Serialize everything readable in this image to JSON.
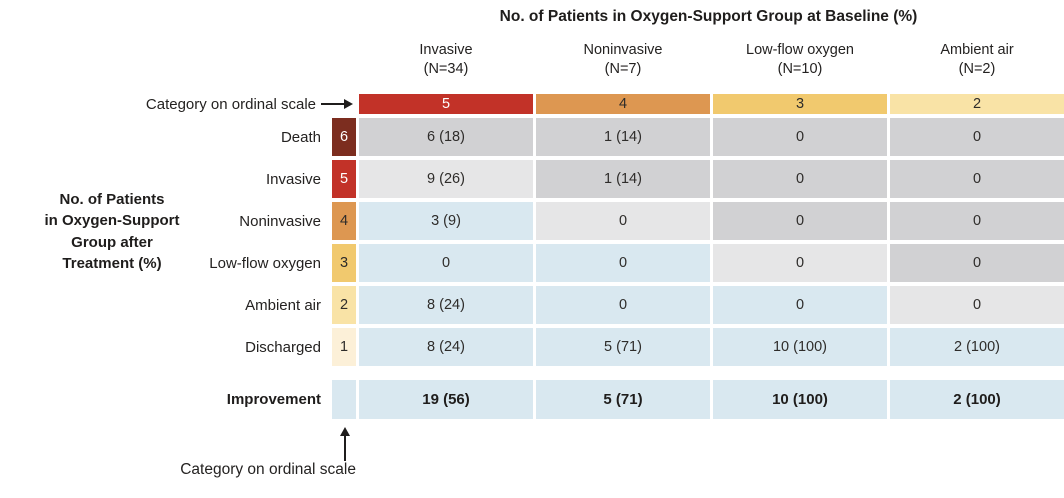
{
  "colors": {
    "ink": "#2e2c2a",
    "chiplight": "#ffffff",
    "cat6": "#7c2d1f",
    "cat5": "#c23228",
    "cat4": "#dd9751",
    "cat3": "#f1c96e",
    "cat2": "#f9e3a6",
    "cat1": "#fcf0d8",
    "gray": "#d1d1d3",
    "lightgray": "#e6e6e7",
    "blue": "#d9e8f0"
  },
  "title": "No. of Patients in Oxygen-Support Group at Baseline (%)",
  "ordinal_pointer_top": "Category on ordinal scale",
  "ordinal_pointer_bottom": "Category on ordinal scale",
  "left_label": {
    "lines": [
      "No. of Patients",
      "in Oxygen-Support",
      "Group after",
      "Treatment (%)"
    ]
  },
  "columns": [
    {
      "label": "Invasive",
      "n": "(N=34)",
      "ordinal": "5",
      "cat": "cat5"
    },
    {
      "label": "Noninvasive",
      "n": "(N=7)",
      "ordinal": "4",
      "cat": "cat4"
    },
    {
      "label": "Low-flow oxygen",
      "n": "(N=10)",
      "ordinal": "3",
      "cat": "cat3"
    },
    {
      "label": "Ambient air",
      "n": "(N=2)",
      "ordinal": "2",
      "cat": "cat2"
    }
  ],
  "rows": [
    {
      "label": "Death",
      "ordinal": "6",
      "cat": "cat6",
      "cells": [
        {
          "v": "6 (18)",
          "shade": "gray"
        },
        {
          "v": "1 (14)",
          "shade": "gray"
        },
        {
          "v": "0",
          "shade": "gray"
        },
        {
          "v": "0",
          "shade": "gray"
        }
      ]
    },
    {
      "label": "Invasive",
      "ordinal": "5",
      "cat": "cat5",
      "cells": [
        {
          "v": "9 (26)",
          "shade": "lightgray"
        },
        {
          "v": "1 (14)",
          "shade": "gray"
        },
        {
          "v": "0",
          "shade": "gray"
        },
        {
          "v": "0",
          "shade": "gray"
        }
      ]
    },
    {
      "label": "Noninvasive",
      "ordinal": "4",
      "cat": "cat4",
      "cells": [
        {
          "v": "3 (9)",
          "shade": "blue"
        },
        {
          "v": "0",
          "shade": "lightgray"
        },
        {
          "v": "0",
          "shade": "gray"
        },
        {
          "v": "0",
          "shade": "gray"
        }
      ]
    },
    {
      "label": "Low-flow oxygen",
      "ordinal": "3",
      "cat": "cat3",
      "cells": [
        {
          "v": "0",
          "shade": "blue"
        },
        {
          "v": "0",
          "shade": "blue"
        },
        {
          "v": "0",
          "shade": "lightgray"
        },
        {
          "v": "0",
          "shade": "gray"
        }
      ]
    },
    {
      "label": "Ambient air",
      "ordinal": "2",
      "cat": "cat2",
      "cells": [
        {
          "v": "8 (24)",
          "shade": "blue"
        },
        {
          "v": "0",
          "shade": "blue"
        },
        {
          "v": "0",
          "shade": "blue"
        },
        {
          "v": "0",
          "shade": "lightgray"
        }
      ]
    },
    {
      "label": "Discharged",
      "ordinal": "1",
      "cat": "cat1",
      "cells": [
        {
          "v": "8 (24)",
          "shade": "blue"
        },
        {
          "v": "5 (71)",
          "shade": "blue"
        },
        {
          "v": "10 (100)",
          "shade": "blue"
        },
        {
          "v": "2 (100)",
          "shade": "blue"
        }
      ]
    }
  ],
  "improvement": {
    "label": "Improvement",
    "chip_shade": "blue",
    "cells": [
      {
        "v": "19 (56)",
        "shade": "blue"
      },
      {
        "v": "5 (71)",
        "shade": "blue"
      },
      {
        "v": "10 (100)",
        "shade": "blue"
      },
      {
        "v": "2 (100)",
        "shade": "blue"
      }
    ]
  },
  "chart_data": {
    "type": "table",
    "title": "No. of Patients in Oxygen-Support Group at Baseline (%)",
    "row_axis_title": "No. of Patients in Oxygen-Support Group after Treatment (%)",
    "columns": [
      "Invasive (N=34)",
      "Noninvasive (N=7)",
      "Low-flow oxygen (N=10)",
      "Ambient air (N=2)"
    ],
    "column_ordinal_categories": [
      5,
      4,
      3,
      2
    ],
    "rows": [
      "Death",
      "Invasive",
      "Noninvasive",
      "Low-flow oxygen",
      "Ambient air",
      "Discharged",
      "Improvement"
    ],
    "row_ordinal_categories": [
      6,
      5,
      4,
      3,
      2,
      1,
      null
    ],
    "values": [
      [
        "6 (18)",
        "1 (14)",
        "0",
        "0"
      ],
      [
        "9 (26)",
        "1 (14)",
        "0",
        "0"
      ],
      [
        "3 (9)",
        "0",
        "0",
        "0"
      ],
      [
        "0",
        "0",
        "0",
        "0"
      ],
      [
        "8 (24)",
        "0",
        "0",
        "0"
      ],
      [
        "8 (24)",
        "5 (71)",
        "10 (100)",
        "2 (100)"
      ],
      [
        "19 (56)",
        "5 (71)",
        "10 (100)",
        "2 (100)"
      ]
    ],
    "cell_shading": [
      [
        "gray",
        "gray",
        "gray",
        "gray"
      ],
      [
        "lightgray",
        "gray",
        "gray",
        "gray"
      ],
      [
        "blue",
        "lightgray",
        "gray",
        "gray"
      ],
      [
        "blue",
        "blue",
        "lightgray",
        "gray"
      ],
      [
        "blue",
        "blue",
        "blue",
        "lightgray"
      ],
      [
        "blue",
        "blue",
        "blue",
        "blue"
      ],
      [
        "blue",
        "blue",
        "blue",
        "blue"
      ]
    ]
  }
}
